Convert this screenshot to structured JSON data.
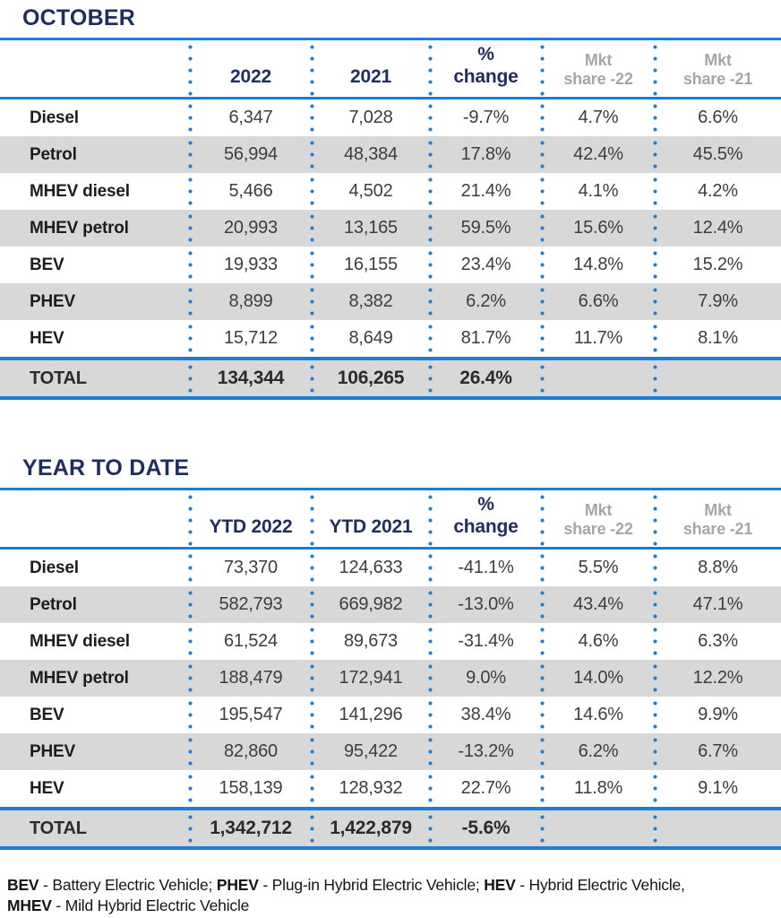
{
  "colors": {
    "navy": "#1f2e5c",
    "blue": "#1c7dd3",
    "shade": "#d8d8d8",
    "muted": "#a6a6a6",
    "value_ink": "#3d3d3d",
    "label_ink": "#1d1d1b",
    "background": "#ffffff"
  },
  "chart_data": [
    {
      "type": "table",
      "title": "OCTOBER",
      "header": [
        {
          "lines": [
            ""
          ],
          "style": "navy"
        },
        {
          "lines": [
            "2022"
          ],
          "style": "navy"
        },
        {
          "lines": [
            "2021"
          ],
          "style": "navy"
        },
        {
          "lines": [
            "%",
            "change"
          ],
          "style": "navy"
        },
        {
          "lines": [
            "Mkt",
            "share -22"
          ],
          "style": "muted"
        },
        {
          "lines": [
            "Mkt",
            "share -21"
          ],
          "style": "muted"
        }
      ],
      "rows": [
        {
          "label": "Diesel",
          "values": [
            "6,347",
            "7,028",
            "-9.7%",
            "4.7%",
            "6.6%"
          ],
          "shaded": false,
          "total": false
        },
        {
          "label": "Petrol",
          "values": [
            "56,994",
            "48,384",
            "17.8%",
            "42.4%",
            "45.5%"
          ],
          "shaded": true,
          "total": false
        },
        {
          "label": "MHEV diesel",
          "values": [
            "5,466",
            "4,502",
            "21.4%",
            "4.1%",
            "4.2%"
          ],
          "shaded": false,
          "total": false
        },
        {
          "label": "MHEV petrol",
          "values": [
            "20,993",
            "13,165",
            "59.5%",
            "15.6%",
            "12.4%"
          ],
          "shaded": true,
          "total": false
        },
        {
          "label": "BEV",
          "values": [
            "19,933",
            "16,155",
            "23.4%",
            "14.8%",
            "15.2%"
          ],
          "shaded": false,
          "total": false
        },
        {
          "label": "PHEV",
          "values": [
            "8,899",
            "8,382",
            "6.2%",
            "6.6%",
            "7.9%"
          ],
          "shaded": true,
          "total": false
        },
        {
          "label": "HEV",
          "values": [
            "15,712",
            "8,649",
            "81.7%",
            "11.7%",
            "8.1%"
          ],
          "shaded": false,
          "total": false
        },
        {
          "label": "TOTAL",
          "values": [
            "134,344",
            "106,265",
            "26.4%",
            "",
            ""
          ],
          "shaded": true,
          "total": true
        }
      ]
    },
    {
      "type": "table",
      "title": "YEAR TO DATE",
      "header": [
        {
          "lines": [
            ""
          ],
          "style": "navy"
        },
        {
          "lines": [
            "YTD 2022"
          ],
          "style": "navy"
        },
        {
          "lines": [
            "YTD 2021"
          ],
          "style": "navy"
        },
        {
          "lines": [
            "%",
            "change"
          ],
          "style": "navy"
        },
        {
          "lines": [
            "Mkt",
            "share -22"
          ],
          "style": "muted"
        },
        {
          "lines": [
            "Mkt",
            "share -21"
          ],
          "style": "muted"
        }
      ],
      "rows": [
        {
          "label": "Diesel",
          "values": [
            "73,370",
            "124,633",
            "-41.1%",
            "5.5%",
            "8.8%"
          ],
          "shaded": false,
          "total": false
        },
        {
          "label": "Petrol",
          "values": [
            "582,793",
            "669,982",
            "-13.0%",
            "43.4%",
            "47.1%"
          ],
          "shaded": true,
          "total": false
        },
        {
          "label": "MHEV diesel",
          "values": [
            "61,524",
            "89,673",
            "-31.4%",
            "4.6%",
            "6.3%"
          ],
          "shaded": false,
          "total": false
        },
        {
          "label": "MHEV petrol",
          "values": [
            "188,479",
            "172,941",
            "9.0%",
            "14.0%",
            "12.2%"
          ],
          "shaded": true,
          "total": false
        },
        {
          "label": "BEV",
          "values": [
            "195,547",
            "141,296",
            "38.4%",
            "14.6%",
            "9.9%"
          ],
          "shaded": false,
          "total": false
        },
        {
          "label": "PHEV",
          "values": [
            "82,860",
            "95,422",
            "-13.2%",
            "6.2%",
            "6.7%"
          ],
          "shaded": true,
          "total": false
        },
        {
          "label": "HEV",
          "values": [
            "158,139",
            "128,932",
            "22.7%",
            "11.8%",
            "9.1%"
          ],
          "shaded": false,
          "total": false
        },
        {
          "label": "TOTAL",
          "values": [
            "1,342,712",
            "1,422,879",
            "-5.6%",
            "",
            ""
          ],
          "shaded": true,
          "total": true
        }
      ]
    }
  ],
  "footnote": {
    "segments": [
      {
        "bold": true,
        "text": "BEV"
      },
      {
        "bold": false,
        "text": " - Battery Electric Vehicle; "
      },
      {
        "bold": true,
        "text": "PHEV"
      },
      {
        "bold": false,
        "text": " - Plug-in Hybrid Electric Vehicle; "
      },
      {
        "bold": true,
        "text": "HEV"
      },
      {
        "bold": false,
        "text": " - Hybrid Electric Vehicle,"
      },
      {
        "br": true
      },
      {
        "bold": true,
        "text": "MHEV"
      },
      {
        "bold": false,
        "text": " - Mild Hybrid Electric Vehicle"
      }
    ]
  }
}
